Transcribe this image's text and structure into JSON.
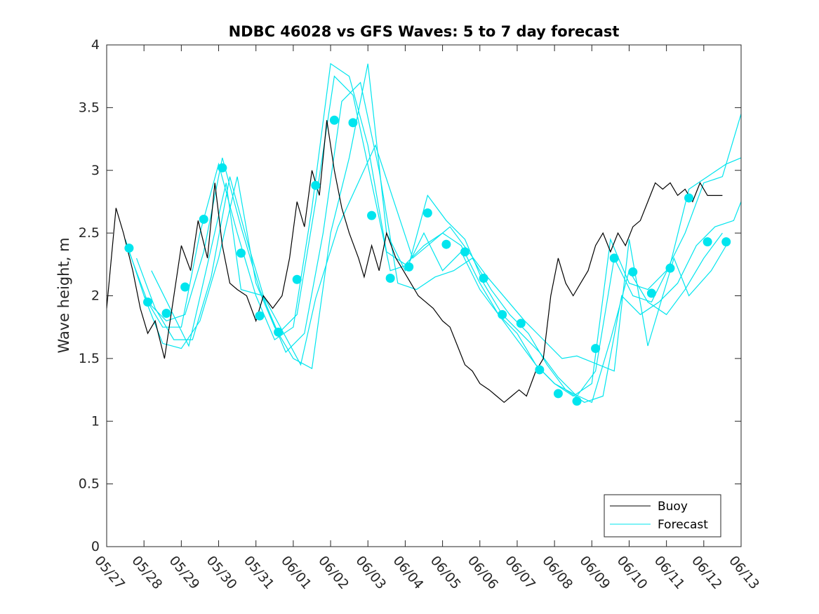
{
  "chart_data": {
    "type": "line",
    "title": "NDBC 46028 vs GFS Waves: 5 to 7 day forecast",
    "xlabel": "",
    "ylabel": "Wave height, m",
    "ylim": [
      0,
      4
    ],
    "yticks": [
      "0",
      "0.5",
      "1",
      "1.5",
      "2",
      "2.5",
      "3",
      "3.5",
      "4"
    ],
    "xlim": [
      0,
      17
    ],
    "xticks": [
      "05/27",
      "05/28",
      "05/29",
      "05/30",
      "05/31",
      "06/01",
      "06/02",
      "06/03",
      "06/04",
      "06/05",
      "06/06",
      "06/07",
      "06/08",
      "06/09",
      "06/10",
      "06/11",
      "06/12",
      "06/13"
    ],
    "grid": false,
    "legend_position": "bottom-right",
    "legend": [
      "Buoy",
      "Forecast"
    ],
    "colors": {
      "buoy": "#000000",
      "forecast": "#00e5ee",
      "axis": "#262626"
    },
    "buoy": {
      "name": "Buoy",
      "x": [
        0,
        0.25,
        0.45,
        0.7,
        0.9,
        1.1,
        1.3,
        1.55,
        1.75,
        2.0,
        2.25,
        2.45,
        2.7,
        2.9,
        3.1,
        3.3,
        3.5,
        3.75,
        4.0,
        4.2,
        4.45,
        4.7,
        4.9,
        5.1,
        5.3,
        5.5,
        5.7,
        5.9,
        6.1,
        6.3,
        6.5,
        6.75,
        6.9,
        7.1,
        7.3,
        7.5,
        7.75,
        7.95,
        8.15,
        8.35,
        8.55,
        8.75,
        9.0,
        9.2,
        9.4,
        9.6,
        9.8,
        10.0,
        10.25,
        10.45,
        10.65,
        10.85,
        11.05,
        11.25,
        11.5,
        11.7,
        11.9,
        12.1,
        12.3,
        12.5,
        12.7,
        12.9,
        13.1,
        13.3,
        13.5,
        13.7,
        13.9,
        14.1,
        14.3,
        14.5,
        14.7,
        14.9,
        15.1,
        15.3,
        15.5,
        15.7,
        15.9,
        16.1,
        16.3,
        16.5
      ],
      "y": [
        1.9,
        2.7,
        2.5,
        2.2,
        1.9,
        1.7,
        1.8,
        1.5,
        1.9,
        2.4,
        2.2,
        2.6,
        2.3,
        2.9,
        2.4,
        2.1,
        2.05,
        2.0,
        1.8,
        2.0,
        1.9,
        2.0,
        2.3,
        2.75,
        2.55,
        3.0,
        2.8,
        3.4,
        3.0,
        2.7,
        2.5,
        2.3,
        2.15,
        2.4,
        2.2,
        2.5,
        2.3,
        2.2,
        2.1,
        2.0,
        1.95,
        1.9,
        1.8,
        1.75,
        1.6,
        1.45,
        1.4,
        1.3,
        1.25,
        1.2,
        1.15,
        1.2,
        1.25,
        1.2,
        1.4,
        1.5,
        2.0,
        2.3,
        2.1,
        2.0,
        2.1,
        2.2,
        2.4,
        2.5,
        2.35,
        2.5,
        2.4,
        2.55,
        2.6,
        2.75,
        2.9,
        2.85,
        2.9,
        2.8,
        2.85,
        2.75,
        2.9,
        2.8,
        2.8,
        2.8
      ]
    },
    "forecast_points": {
      "name": "Forecast",
      "x": [
        0.6,
        1.1,
        1.6,
        2.1,
        2.6,
        3.1,
        3.6,
        4.1,
        4.6,
        5.1,
        5.6,
        6.1,
        6.6,
        7.1,
        7.6,
        8.1,
        8.6,
        9.1,
        9.6,
        10.1,
        10.6,
        11.1,
        11.6,
        12.1,
        12.6,
        13.1,
        13.6,
        14.1,
        14.6,
        15.1,
        15.6,
        16.1,
        16.6
      ],
      "y": [
        2.38,
        1.95,
        1.86,
        2.07,
        2.61,
        3.02,
        2.34,
        1.84,
        1.71,
        2.13,
        2.88,
        3.4,
        3.38,
        2.64,
        2.14,
        2.23,
        2.66,
        2.41,
        2.35,
        2.14,
        1.85,
        1.78,
        1.41,
        1.22,
        1.16,
        1.58,
        2.3,
        2.19,
        2.02,
        2.22,
        2.78,
        2.43,
        2.43
      ]
    },
    "forecast_lines": [
      {
        "x": [
          0.5,
          1.0,
          1.5,
          2.0,
          2.5,
          3.0,
          3.5,
          4.0,
          4.5,
          5.0,
          5.5,
          6.0,
          6.5,
          7.0,
          7.5,
          8.0,
          8.5,
          9.0,
          9.5,
          10.0,
          10.5,
          11.0,
          11.5,
          12.0,
          12.5,
          13.0,
          13.5,
          14.0,
          14.5,
          15.0,
          15.5,
          16.0,
          16.5,
          17.0
        ],
        "y": [
          2.45,
          2.0,
          1.75,
          1.75,
          2.5,
          3.05,
          2.5,
          2.0,
          1.65,
          1.75,
          2.7,
          3.85,
          3.75,
          3.2,
          2.35,
          2.25,
          2.4,
          2.5,
          2.4,
          2.1,
          1.85,
          1.65,
          1.45,
          1.3,
          1.2,
          1.3,
          2.45,
          2.1,
          2.05,
          2.2,
          2.5,
          2.9,
          2.95,
          3.45
        ]
      },
      {
        "x": [
          0.6,
          1.1,
          1.6,
          2.1,
          2.6,
          3.1,
          3.6,
          4.1,
          4.6,
          5.1,
          5.6,
          6.1,
          6.6,
          7.1,
          7.6,
          8.1,
          8.6,
          9.1,
          9.6,
          10.1,
          10.6,
          11.1,
          11.6,
          12.1,
          12.6,
          13.1,
          13.6,
          14.1,
          14.6,
          15.1,
          15.6,
          16.1,
          16.6,
          17.0
        ],
        "y": [
          2.35,
          1.95,
          1.8,
          1.85,
          2.35,
          3.1,
          2.55,
          2.05,
          1.7,
          1.85,
          2.75,
          3.75,
          3.6,
          2.9,
          2.2,
          2.25,
          2.8,
          2.6,
          2.45,
          2.1,
          1.85,
          1.7,
          1.55,
          1.35,
          1.2,
          1.4,
          2.3,
          2.0,
          1.95,
          2.25,
          2.85,
          2.95,
          3.05,
          3.1
        ]
      },
      {
        "x": [
          0.8,
          1.3,
          1.8,
          2.3,
          2.8,
          3.3,
          3.8,
          4.3,
          4.8,
          5.3,
          5.8,
          6.3,
          6.8,
          7.3,
          7.8,
          8.3,
          8.8,
          9.3,
          9.8,
          10.3,
          10.8,
          11.3,
          11.8,
          12.3,
          12.8,
          13.3,
          13.8,
          14.3,
          14.8,
          15.3,
          15.8,
          16.3,
          16.8,
          17.0
        ],
        "y": [
          2.3,
          1.9,
          1.65,
          1.65,
          2.15,
          2.95,
          2.4,
          1.9,
          1.55,
          1.7,
          2.5,
          3.55,
          3.7,
          3.0,
          2.1,
          2.05,
          2.15,
          2.2,
          2.3,
          2.05,
          1.85,
          1.7,
          1.45,
          1.25,
          1.15,
          1.2,
          2.0,
          1.85,
          1.95,
          2.1,
          2.4,
          2.55,
          2.6,
          2.75
        ]
      },
      {
        "x": [
          1.0,
          1.5,
          2.0,
          2.5,
          3.0,
          3.5,
          4.0,
          4.5,
          5.0,
          5.5,
          6.0,
          6.5,
          7.0,
          7.5,
          8.0,
          8.5,
          9.0,
          9.5,
          10.0,
          10.5,
          11.0,
          11.5,
          12.0,
          12.5,
          13.0,
          13.5,
          14.0,
          14.5,
          15.0,
          15.5,
          16.0,
          16.5
        ],
        "y": [
          2.0,
          1.62,
          1.58,
          1.8,
          2.3,
          2.95,
          2.1,
          1.75,
          1.5,
          1.42,
          2.5,
          3.1,
          3.85,
          2.5,
          2.2,
          2.5,
          2.2,
          2.35,
          2.05,
          1.85,
          1.7,
          1.45,
          1.3,
          1.22,
          1.15,
          1.65,
          2.2,
          1.95,
          1.85,
          2.05,
          2.3,
          2.5
        ]
      },
      {
        "x": [
          1.2,
          2.2,
          3.2,
          3.6,
          4.2,
          5.2,
          5.6,
          6.2,
          7.2,
          8.2,
          9.2,
          10.2,
          11.2,
          12.2,
          12.6,
          13.6,
          14.0,
          14.5,
          15.2,
          15.6,
          16.2,
          16.6
        ],
        "y": [
          2.2,
          1.6,
          2.9,
          2.05,
          2.0,
          1.45,
          1.98,
          2.55,
          3.2,
          2.3,
          2.55,
          2.15,
          1.8,
          1.5,
          1.52,
          1.4,
          2.45,
          1.6,
          2.3,
          2.0,
          2.2,
          2.4
        ]
      }
    ]
  }
}
